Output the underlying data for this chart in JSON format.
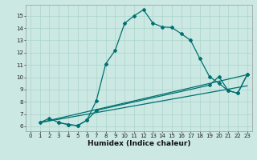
{
  "xlabel": "Humidex (Indice chaleur)",
  "ylabel": "",
  "bg_color": "#cbe8e3",
  "grid_color": "#aad4cc",
  "line_color": "#007070",
  "xlim": [
    -0.5,
    23.5
  ],
  "ylim": [
    5.6,
    15.9
  ],
  "xticks": [
    0,
    1,
    2,
    3,
    4,
    5,
    6,
    7,
    8,
    9,
    10,
    11,
    12,
    13,
    14,
    15,
    16,
    17,
    18,
    19,
    20,
    21,
    22,
    23
  ],
  "yticks": [
    6,
    7,
    8,
    9,
    10,
    11,
    12,
    13,
    14,
    15
  ],
  "curve1_x": [
    1,
    2,
    3,
    4,
    5,
    6,
    7,
    8,
    9,
    10,
    11,
    12,
    13,
    14,
    15,
    16,
    17,
    18,
    19,
    20,
    21,
    22,
    23
  ],
  "curve1_y": [
    6.3,
    6.65,
    6.3,
    6.15,
    6.05,
    6.5,
    8.1,
    11.1,
    12.2,
    14.4,
    15.0,
    15.5,
    14.4,
    14.1,
    14.05,
    13.55,
    13.0,
    11.5,
    10.05,
    9.5,
    8.9,
    8.7,
    10.2
  ],
  "curve2_x": [
    3,
    4,
    5,
    6,
    7,
    19,
    20,
    21,
    22,
    23
  ],
  "curve2_y": [
    6.3,
    6.15,
    6.05,
    6.5,
    7.3,
    9.35,
    10.05,
    8.9,
    8.7,
    10.2
  ],
  "curve3_x": [
    1,
    23
  ],
  "curve3_y": [
    6.3,
    10.2
  ],
  "curve4_x": [
    1,
    23
  ],
  "curve4_y": [
    6.3,
    9.3
  ]
}
